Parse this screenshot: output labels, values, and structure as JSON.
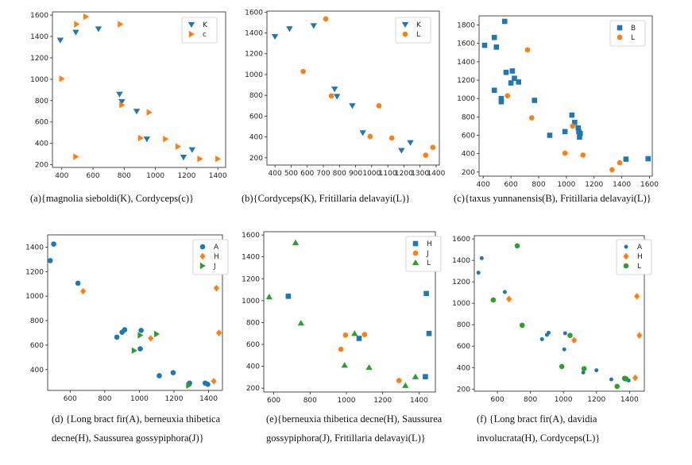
{
  "chart_data": [
    {
      "type": "scatter",
      "xlim": [
        340,
        1450
      ],
      "ylim": [
        175,
        1630
      ],
      "xticks": [
        400,
        600,
        800,
        1000,
        1200,
        1400
      ],
      "yticks": [
        200,
        400,
        600,
        800,
        1000,
        1200,
        1400,
        1600
      ],
      "legend_position": "top-right",
      "caption": "(a){magnolia sieboldi(K), Cordyceps(c)}",
      "series": [
        {
          "name": "K",
          "marker": "tri-down",
          "color": "#1f77b4",
          "x": [
            390,
            490,
            635,
            770,
            785,
            880,
            945,
            1180,
            1235
          ],
          "y": [
            1365,
            1440,
            1470,
            860,
            790,
            700,
            440,
            270,
            340
          ]
        },
        {
          "name": "c",
          "marker": "tri-right",
          "color": "#ff7f0e",
          "x": [
            495,
            555,
            775,
            400,
            785,
            960,
            905,
            1065,
            1145,
            1285,
            1400,
            490
          ],
          "y": [
            1515,
            1585,
            1515,
            1005,
            760,
            690,
            450,
            440,
            370,
            255,
            255,
            275
          ]
        }
      ]
    },
    {
      "type": "scatter",
      "xlim": [
        350,
        1420
      ],
      "ylim": [
        130,
        1610
      ],
      "xticks": [
        400,
        500,
        600,
        700,
        800,
        900,
        1000,
        1100,
        1200,
        1300,
        1400
      ],
      "yticks": [
        200,
        400,
        600,
        800,
        1000,
        1200,
        1400,
        1600
      ],
      "legend_position": "top-right",
      "caption": "(b){Cordyceps(K), Fritillaria delavayi(L)}",
      "series": [
        {
          "name": "K",
          "marker": "tri-down",
          "color": "#1f77b4",
          "x": [
            400,
            490,
            640,
            770,
            785,
            880,
            945,
            1185,
            1240
          ],
          "y": [
            1365,
            1440,
            1470,
            860,
            790,
            700,
            440,
            270,
            345
          ]
        },
        {
          "name": "L",
          "marker": "circle",
          "color": "#ff7f0e",
          "x": [
            715,
            575,
            750,
            1045,
            990,
            1125,
            1335,
            1380
          ],
          "y": [
            1535,
            1030,
            795,
            700,
            405,
            390,
            225,
            300
          ]
        }
      ]
    },
    {
      "type": "scatter",
      "xlim": [
        370,
        1620
      ],
      "ylim": [
        155,
        1900
      ],
      "xticks": [
        400,
        600,
        800,
        1000,
        1200,
        1400,
        1600
      ],
      "yticks": [
        200,
        400,
        600,
        800,
        1000,
        1200,
        1400,
        1600,
        1800
      ],
      "legend_position": "top-right",
      "caption": "(c){taxus yunnanensis(B), Fritillaria delavayi(L)}",
      "series": [
        {
          "name": "B",
          "marker": "square",
          "color": "#1f77b4",
          "x": [
            555,
            480,
            410,
            495,
            565,
            610,
            625,
            600,
            655,
            480,
            530,
            530,
            770,
            880,
            990,
            1040,
            1060,
            1085,
            1090,
            1095,
            1100,
            1430,
            1590
          ],
          "y": [
            1840,
            1665,
            1580,
            1560,
            1285,
            1300,
            1220,
            1170,
            1180,
            1090,
            1000,
            965,
            980,
            600,
            640,
            820,
            740,
            680,
            640,
            580,
            620,
            340,
            345
          ]
        },
        {
          "name": "L",
          "marker": "circle",
          "color": "#ff7f0e",
          "x": [
            720,
            575,
            750,
            1045,
            990,
            1120,
            1330,
            1385
          ],
          "y": [
            1530,
            1030,
            790,
            700,
            405,
            385,
            225,
            300
          ]
        }
      ]
    },
    {
      "type": "scatter",
      "xlim": [
        470,
        1480
      ],
      "ylim": [
        230,
        1500
      ],
      "xticks": [
        600,
        800,
        1000,
        1200,
        1400
      ],
      "yticks": [
        400,
        600,
        800,
        1000,
        1200,
        1400
      ],
      "legend_position": "top-right",
      "caption": "(d) {Long bract fir(A), berneuxia thibetica decne(H), Saussurea gossypiphora(J)}",
      "caption_lines": [
        "(d) {Long bract fir(A), berneuxia thibetica",
        "decne(H), Saussurea gossypiphora(J)}"
      ],
      "series": [
        {
          "name": "A",
          "marker": "circle",
          "color": "#1f77b4",
          "x": [
            505,
            485,
            645,
            870,
            900,
            915,
            1010,
            1005,
            1115,
            1195,
            1290,
            1380,
            1395
          ],
          "y": [
            1425,
            1290,
            1105,
            665,
            705,
            725,
            720,
            570,
            350,
            375,
            290,
            290,
            280
          ]
        },
        {
          "name": "H",
          "marker": "diamond",
          "color": "#ff7f0e",
          "x": [
            675,
            1065,
            1445,
            1460,
            1430
          ],
          "y": [
            1040,
            655,
            1065,
            700,
            305
          ]
        },
        {
          "name": "J",
          "marker": "tri-right",
          "color": "#2ca02c",
          "x": [
            1100,
            1005,
            970,
            1285
          ],
          "y": [
            690,
            680,
            555,
            270
          ]
        }
      ]
    },
    {
      "type": "scatter",
      "xlim": [
        545,
        1490
      ],
      "ylim": [
        165,
        1630
      ],
      "xticks": [
        600,
        800,
        1000,
        1200,
        1400
      ],
      "yticks": [
        200,
        400,
        600,
        800,
        1000,
        1200,
        1400,
        1600
      ],
      "legend_position": "top-right",
      "caption": "(e){berneuxia thibetica decne(H), Saussurea gossypiphora(J), Fritillaria delavayi(L)}",
      "caption_lines": [
        "(e){berneuxia thibetica decne(H), Saussurea",
        "gossypiphora(J), Fritillaria delavayi(L)}"
      ],
      "series": [
        {
          "name": "H",
          "marker": "square",
          "color": "#1f77b4",
          "x": [
            680,
            1070,
            1440,
            1455,
            1435
          ],
          "y": [
            1040,
            655,
            1065,
            700,
            305
          ]
        },
        {
          "name": "J",
          "marker": "circle",
          "color": "#ff7f0e",
          "x": [
            995,
            1100,
            970,
            1290
          ],
          "y": [
            685,
            690,
            555,
            270
          ]
        },
        {
          "name": "L",
          "marker": "triangle",
          "color": "#2ca02c",
          "x": [
            575,
            720,
            750,
            1045,
            990,
            1125,
            1325,
            1380
          ],
          "y": [
            1035,
            1530,
            795,
            700,
            410,
            390,
            225,
            305
          ]
        }
      ]
    },
    {
      "type": "scatter",
      "xlim": [
        460,
        1490
      ],
      "ylim": [
        180,
        1630
      ],
      "xticks": [
        600,
        800,
        1000,
        1200,
        1400
      ],
      "yticks": [
        200,
        400,
        600,
        800,
        1000,
        1200,
        1400,
        1600
      ],
      "legend_position": "top-right",
      "caption": "(f) {Long bract fir(A), davidia involucrata(H), Cordyceps(L)}",
      "caption_lines": [
        "(f) {Long bract fir(A), davidia",
        "involucrata(H), Cordyceps(L)}"
      ],
      "series": [
        {
          "name": "A",
          "marker": "circle-sm",
          "color": "#1f77b4",
          "x": [
            505,
            485,
            645,
            870,
            900,
            910,
            1010,
            1005,
            1120,
            1200,
            1290,
            1375,
            1395
          ],
          "y": [
            1420,
            1285,
            1105,
            665,
            705,
            725,
            720,
            570,
            355,
            375,
            290,
            290,
            280
          ]
        },
        {
          "name": "H",
          "marker": "diamond",
          "color": "#ff7f0e",
          "x": [
            670,
            1065,
            1445,
            1460,
            1435
          ],
          "y": [
            1040,
            655,
            1065,
            700,
            305
          ]
        },
        {
          "name": "L",
          "marker": "circle",
          "color": "#2ca02c",
          "x": [
            575,
            720,
            750,
            1040,
            990,
            1125,
            1325,
            1380,
            1370
          ],
          "y": [
            1030,
            1535,
            795,
            700,
            410,
            390,
            225,
            295,
            300
          ]
        }
      ]
    }
  ]
}
